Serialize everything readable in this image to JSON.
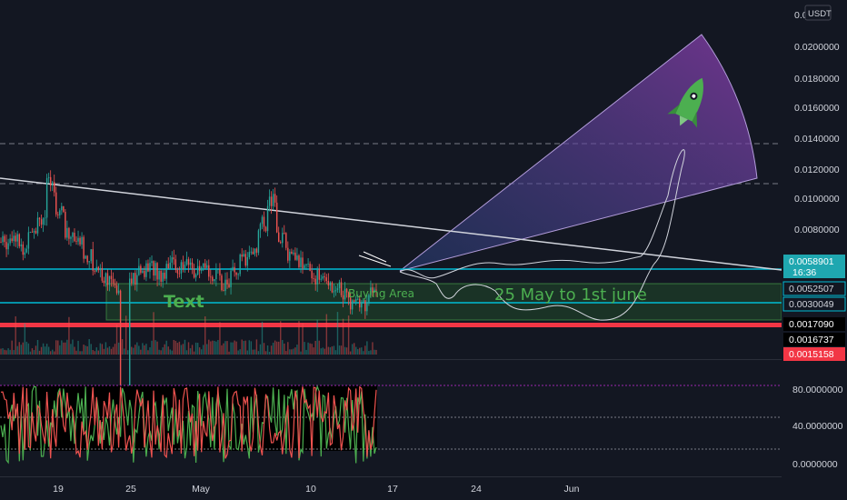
{
  "currency_button": "USDT",
  "price_axis": {
    "ticks": [
      "0.0200000",
      "0.0180000",
      "0.0160000",
      "0.0140000",
      "0.0120000",
      "0.0100000",
      "0.0080000"
    ],
    "top_partial": "0.0"
  },
  "price_badges": [
    {
      "label": "0.0058901",
      "sub": "16:36",
      "bg": "#1fa7b0",
      "fg": "#ffffff"
    },
    {
      "label": "0.0052507",
      "bg": "#131722",
      "fg": "#d1d4dc",
      "border": "#00bcd4"
    },
    {
      "label": "0.0030049",
      "bg": "#131722",
      "fg": "#d1d4dc",
      "border": "#00bcd4"
    },
    {
      "label": "0.0017090",
      "bg": "#000000",
      "fg": "#ffffff"
    },
    {
      "label": "0.0016737",
      "bg": "#000000",
      "fg": "#ffffff"
    },
    {
      "label": "0.0015158",
      "bg": "#f23645",
      "fg": "#ffffff"
    }
  ],
  "osc_axis": {
    "ticks": [
      "80.0000000",
      "40.0000000",
      "0.0000000"
    ]
  },
  "time_axis": {
    "ticks": [
      "19",
      "25",
      "May",
      "10",
      "17",
      "24",
      "Jun"
    ]
  },
  "annotations": {
    "text_box": "Text",
    "buying_area": "Buying Area",
    "date_range": "25 May to 1st june"
  },
  "colors": {
    "background": "#131722",
    "up": "#26a69a",
    "down": "#ef5350",
    "cyan": "#00bcd4",
    "red": "#f23645",
    "green_text": "#4caf50",
    "fan_purple": "#7b3fa8",
    "fan_blue": "#2e4a8c",
    "trend": "#d1d4dc"
  },
  "chart_data": {
    "type": "candlestick",
    "title": "",
    "y_scale": "log",
    "x_ticks": [
      "19",
      "25",
      "May",
      "10",
      "17",
      "24",
      "Jun"
    ],
    "y_ticks": [
      0.02,
      0.018,
      0.016,
      0.014,
      0.012,
      0.01,
      0.008
    ],
    "last_price": 0.0058901,
    "horizontal_levels": [
      0.0052507,
      0.0030049,
      0.001709,
      0.0016737,
      0.0015158
    ],
    "buying_area": [
      0.0022,
      0.0043
    ],
    "trendline": {
      "start": 0.0108,
      "end": 0.0055
    },
    "approx_closes": [
      0.0075,
      0.0078,
      0.0072,
      0.0081,
      0.0085,
      0.01,
      0.0088,
      0.0078,
      0.0075,
      0.007,
      0.0066,
      0.0063,
      0.006,
      0.003,
      0.0062,
      0.0065,
      0.0066,
      0.0064,
      0.0068,
      0.0066,
      0.0067,
      0.0064,
      0.0065,
      0.0063,
      0.0061,
      0.0064,
      0.0068,
      0.0072,
      0.0082,
      0.0092,
      0.0077,
      0.0071,
      0.0068,
      0.0065,
      0.0063,
      0.0062,
      0.006,
      0.0058,
      0.0055,
      0.0055,
      0.0058
    ],
    "oscillator": {
      "ylim": [
        0,
        100
      ],
      "levels": [
        80,
        50,
        20
      ]
    }
  }
}
